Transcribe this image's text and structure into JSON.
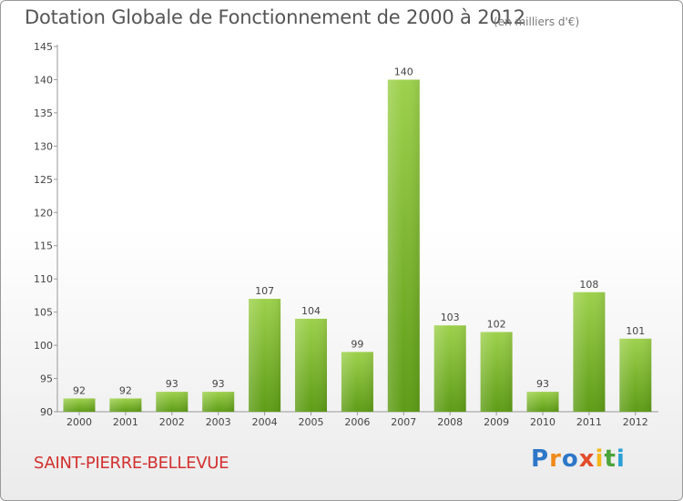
{
  "chart_data": {
    "type": "bar",
    "title": "Dotation Globale de Fonctionnement de 2000 à 2012",
    "subtitle": "(en milliers d'€)",
    "categories": [
      "2000",
      "2001",
      "2002",
      "2003",
      "2004",
      "2005",
      "2006",
      "2007",
      "2008",
      "2009",
      "2010",
      "2011",
      "2012"
    ],
    "values": [
      92,
      92,
      93,
      93,
      107,
      104,
      99,
      140,
      103,
      102,
      93,
      108,
      101
    ],
    "xlabel": "",
    "ylabel": "",
    "ylim": [
      90,
      145
    ],
    "yticks": [
      90,
      95,
      100,
      105,
      110,
      115,
      120,
      125,
      130,
      135,
      140,
      145
    ],
    "grid": false,
    "bar_color": "#7cba2e"
  },
  "footer": {
    "commune": "SAINT-PIERRE-BELLEVUE",
    "logo": [
      "P",
      "r",
      "o",
      "x",
      "i",
      "t",
      "i"
    ]
  }
}
